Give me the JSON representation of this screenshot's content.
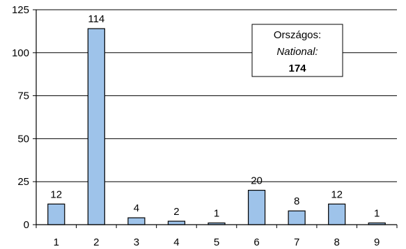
{
  "colors": {
    "bar_fill": "#9ec3ea",
    "bar_stroke": "#000000",
    "axis": "#000000",
    "grid": "#000000",
    "background": "#ffffff"
  },
  "annotation": {
    "line1": "Országos:",
    "line2": "National:",
    "line3": "174"
  },
  "chart_data": {
    "type": "bar",
    "title": "",
    "xlabel": "",
    "ylabel": "",
    "categories": [
      "1",
      "2",
      "3",
      "4",
      "5",
      "6",
      "7",
      "8",
      "9"
    ],
    "values": [
      12,
      114,
      4,
      2,
      1,
      20,
      8,
      12,
      1
    ],
    "data_labels": [
      "12",
      "114",
      "4",
      "2",
      "1",
      "20",
      "8",
      "12",
      "1"
    ],
    "ylim": [
      0,
      125
    ],
    "yticks": [
      0,
      25,
      50,
      75,
      100,
      125
    ],
    "ytick_labels": [
      "0",
      "25",
      "50",
      "75",
      "100",
      "125"
    ],
    "grid": true,
    "legend": "none"
  }
}
